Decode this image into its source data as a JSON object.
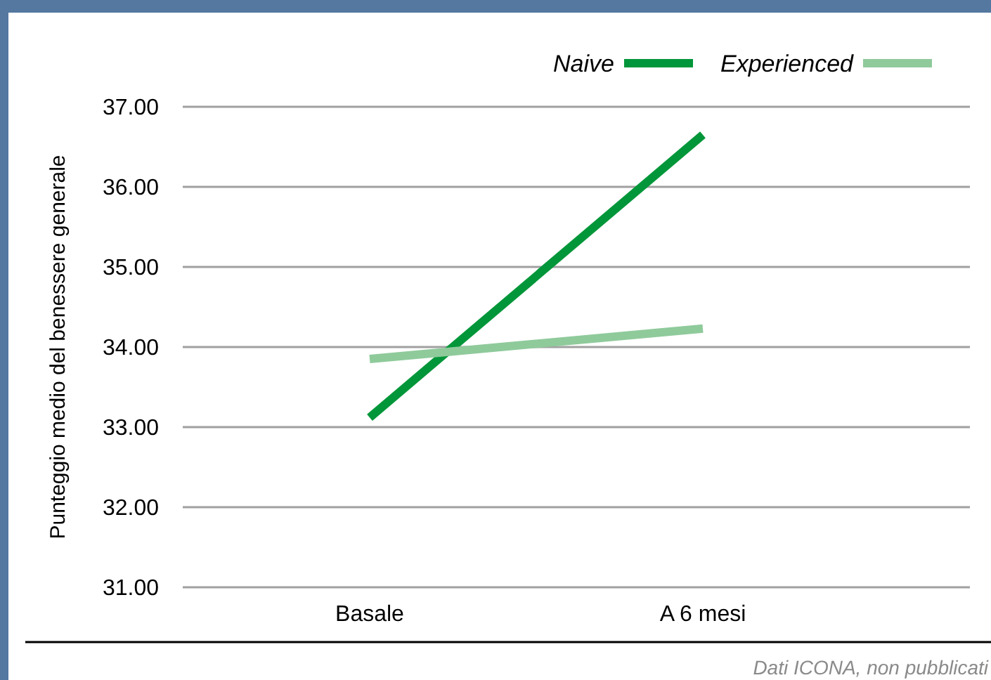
{
  "chart_data": {
    "type": "line",
    "ylabel": "Punteggio medio del benessere generale",
    "categories": [
      "Basale",
      "A 6 mesi"
    ],
    "series": [
      {
        "name": "Naive",
        "color": "#009639",
        "values": [
          33.12,
          36.65
        ]
      },
      {
        "name": "Experienced",
        "color": "#8fca9b",
        "values": [
          33.85,
          34.23
        ]
      }
    ],
    "ylim": [
      31,
      37
    ],
    "yticks": [
      {
        "value": 31,
        "label": "31.00"
      },
      {
        "value": 32,
        "label": "32.00"
      },
      {
        "value": 33,
        "label": "33.00"
      },
      {
        "value": 34,
        "label": "34.00"
      },
      {
        "value": 35,
        "label": "35.00"
      },
      {
        "value": 36,
        "label": "36.00"
      },
      {
        "value": 37,
        "label": "37.00"
      }
    ],
    "grid": "y",
    "legend": "top right",
    "line_style": "solid",
    "annotations": [
      "Dati ICONA, non pubblicati"
    ]
  }
}
